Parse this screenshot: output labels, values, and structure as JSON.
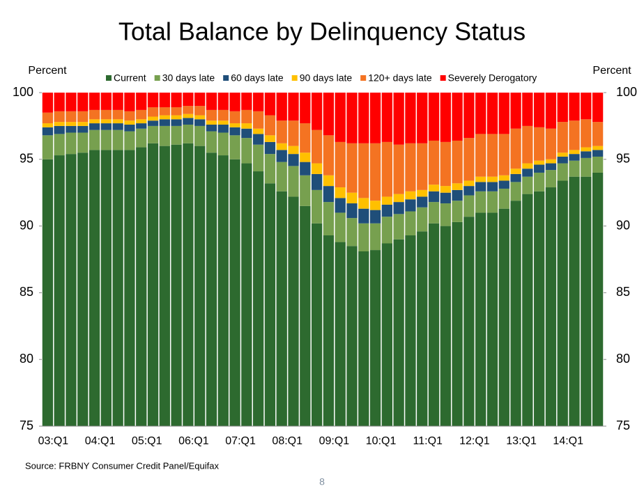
{
  "chart_data": {
    "type": "stacked_bar",
    "title": "Total Balance by Delinquency Status",
    "ylabel": "Percent",
    "y2label": "Percent",
    "categories": [
      "03:Q1",
      null,
      null,
      null,
      "04:Q1",
      null,
      null,
      null,
      "05:Q1",
      null,
      null,
      null,
      "06:Q1",
      null,
      null,
      null,
      "07:Q1",
      null,
      null,
      null,
      "08:Q1",
      null,
      null,
      null,
      "09:Q1",
      null,
      null,
      null,
      "10:Q1",
      null,
      null,
      null,
      "11:Q1",
      null,
      null,
      null,
      "12:Q1",
      null,
      null,
      null,
      "13:Q1",
      null,
      null,
      null,
      "14:Q1",
      null,
      null,
      null
    ],
    "series": [
      {
        "name": "Current",
        "color": "#2d6a2f",
        "values": [
          95.0,
          95.3,
          95.4,
          95.5,
          95.7,
          95.7,
          95.7,
          95.7,
          95.9,
          96.2,
          96.0,
          96.1,
          96.2,
          96.0,
          95.5,
          95.3,
          95.0,
          94.7,
          94.1,
          93.2,
          92.6,
          92.2,
          91.5,
          90.2,
          89.3,
          88.8,
          88.5,
          88.1,
          88.2,
          88.7,
          89.0,
          89.3,
          89.6,
          90.2,
          90.0,
          90.3,
          90.7,
          91.0,
          91.0,
          91.3,
          91.9,
          92.4,
          92.6,
          92.9,
          93.4,
          93.7,
          93.7,
          94.0
        ]
      },
      {
        "name": "30 days late",
        "color": "#77a04f",
        "values": [
          1.8,
          1.6,
          1.6,
          1.5,
          1.5,
          1.5,
          1.5,
          1.4,
          1.4,
          1.3,
          1.5,
          1.4,
          1.4,
          1.5,
          1.6,
          1.7,
          1.8,
          1.9,
          2.0,
          2.2,
          2.2,
          2.3,
          2.3,
          2.5,
          2.5,
          2.2,
          2.1,
          2.1,
          2.0,
          2.0,
          1.9,
          1.8,
          1.8,
          1.6,
          1.7,
          1.6,
          1.6,
          1.6,
          1.6,
          1.5,
          1.4,
          1.3,
          1.4,
          1.3,
          1.3,
          1.2,
          1.4,
          1.2
        ]
      },
      {
        "name": "60 days late",
        "color": "#1f4e79",
        "values": [
          0.6,
          0.6,
          0.5,
          0.5,
          0.5,
          0.5,
          0.5,
          0.5,
          0.4,
          0.4,
          0.5,
          0.5,
          0.5,
          0.5,
          0.5,
          0.6,
          0.6,
          0.7,
          0.8,
          0.9,
          0.9,
          0.9,
          1.0,
          1.2,
          1.2,
          1.1,
          1.1,
          1.1,
          1.0,
          0.9,
          0.9,
          0.9,
          0.8,
          0.8,
          0.8,
          0.8,
          0.7,
          0.7,
          0.7,
          0.6,
          0.6,
          0.6,
          0.6,
          0.5,
          0.5,
          0.5,
          0.5,
          0.5
        ]
      },
      {
        "name": "90 days late",
        "color": "#ffc000",
        "values": [
          0.3,
          0.3,
          0.3,
          0.3,
          0.3,
          0.3,
          0.3,
          0.3,
          0.3,
          0.3,
          0.3,
          0.3,
          0.3,
          0.3,
          0.3,
          0.3,
          0.3,
          0.4,
          0.4,
          0.5,
          0.5,
          0.6,
          0.7,
          0.8,
          0.8,
          0.8,
          0.8,
          0.8,
          0.7,
          0.6,
          0.6,
          0.6,
          0.5,
          0.5,
          0.5,
          0.5,
          0.4,
          0.4,
          0.4,
          0.4,
          0.4,
          0.4,
          0.3,
          0.3,
          0.3,
          0.3,
          0.3,
          0.3
        ]
      },
      {
        "name": "120+ days late",
        "color": "#f47322",
        "values": [
          0.8,
          0.8,
          0.8,
          0.8,
          0.7,
          0.7,
          0.7,
          0.7,
          0.7,
          0.7,
          0.6,
          0.6,
          0.6,
          0.7,
          0.8,
          0.8,
          0.9,
          1.0,
          1.3,
          1.5,
          1.7,
          1.9,
          2.2,
          2.5,
          3.0,
          3.4,
          3.7,
          4.1,
          4.3,
          4.1,
          3.7,
          3.6,
          3.5,
          3.3,
          3.3,
          3.2,
          3.2,
          3.2,
          3.2,
          3.1,
          3.0,
          2.8,
          2.5,
          2.3,
          2.3,
          2.2,
          2.1,
          1.8
        ]
      },
      {
        "name": "Severely Derogatory",
        "color": "#ff0000",
        "values": [
          1.5,
          1.4,
          1.4,
          1.4,
          1.3,
          1.3,
          1.3,
          1.4,
          1.3,
          1.1,
          1.1,
          1.1,
          1.0,
          1.0,
          1.3,
          1.3,
          1.4,
          1.3,
          1.4,
          1.7,
          2.1,
          2.1,
          2.3,
          2.8,
          3.2,
          3.7,
          3.8,
          3.8,
          3.8,
          3.7,
          3.9,
          3.8,
          3.8,
          3.6,
          3.7,
          3.6,
          3.4,
          3.1,
          3.1,
          3.1,
          2.7,
          2.5,
          2.6,
          2.7,
          2.2,
          2.1,
          2.0,
          2.2
        ]
      }
    ],
    "ylim": [
      75,
      100
    ],
    "yticks": [
      75,
      80,
      85,
      90,
      95,
      100
    ],
    "y2lim": [
      75,
      100
    ],
    "y2ticks": [
      75,
      80,
      85,
      90,
      95,
      100
    ]
  },
  "source": "Source: FRBNY Consumer Credit Panel/Equifax",
  "page_number": "8"
}
